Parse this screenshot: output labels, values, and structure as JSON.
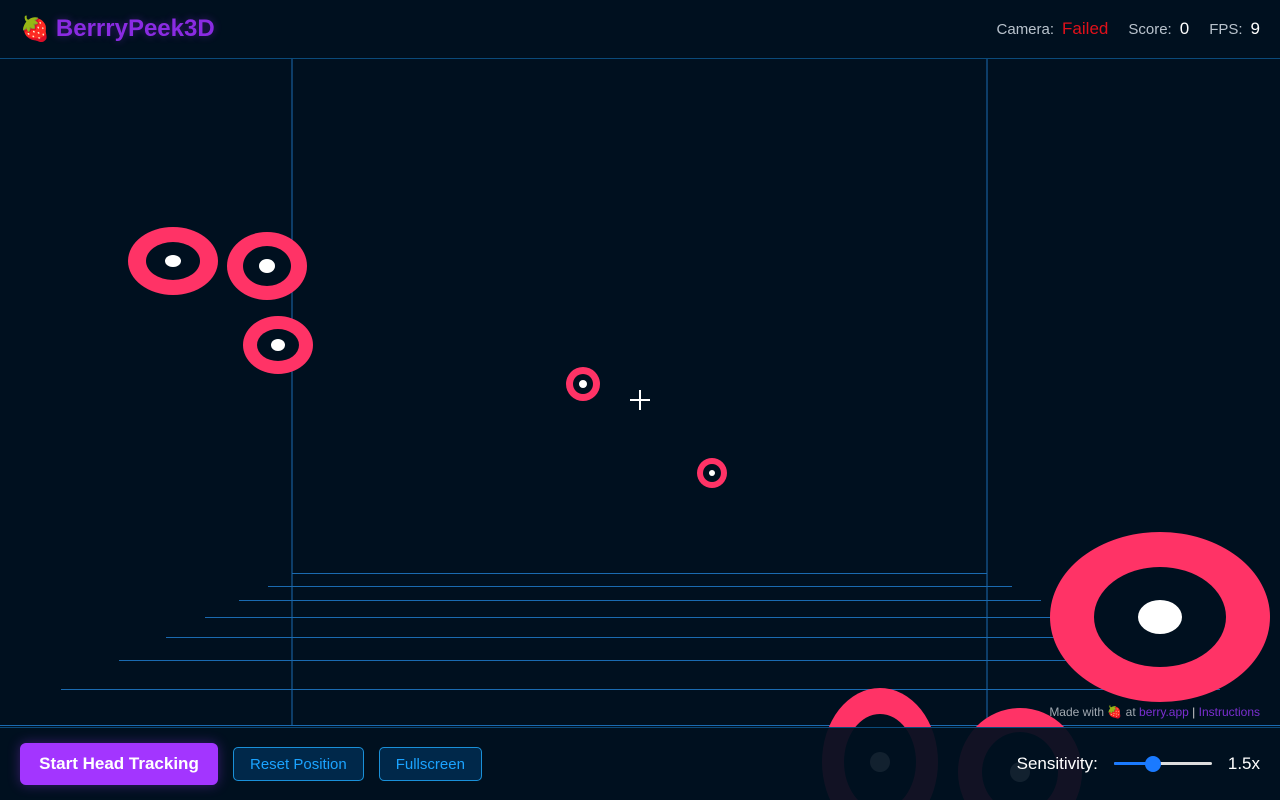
{
  "header": {
    "logo_icon": "strawberry-icon",
    "title": "BerrryPeek3D",
    "camera_label": "Camera:",
    "camera_value": "Failed",
    "score_label": "Score:",
    "score_value": "0",
    "fps_label": "FPS:",
    "fps_value": "9"
  },
  "colors": {
    "target": "#ff3366",
    "accent": "#a335ff",
    "failed": "#e0101a",
    "grid": "#1a6ab0"
  },
  "footer": {
    "start_label": "Start Head Tracking",
    "reset_label": "Reset Position",
    "fullscreen_label": "Fullscreen",
    "sensitivity_label": "Sensitivity:",
    "sensitivity_value": "1.5x",
    "sensitivity_fraction": 0.4
  },
  "credit": {
    "made_with": "Made with",
    "icon": "strawberry-icon",
    "at": "at",
    "link": "berry.app",
    "sep": "|",
    "instructions": "Instructions"
  }
}
